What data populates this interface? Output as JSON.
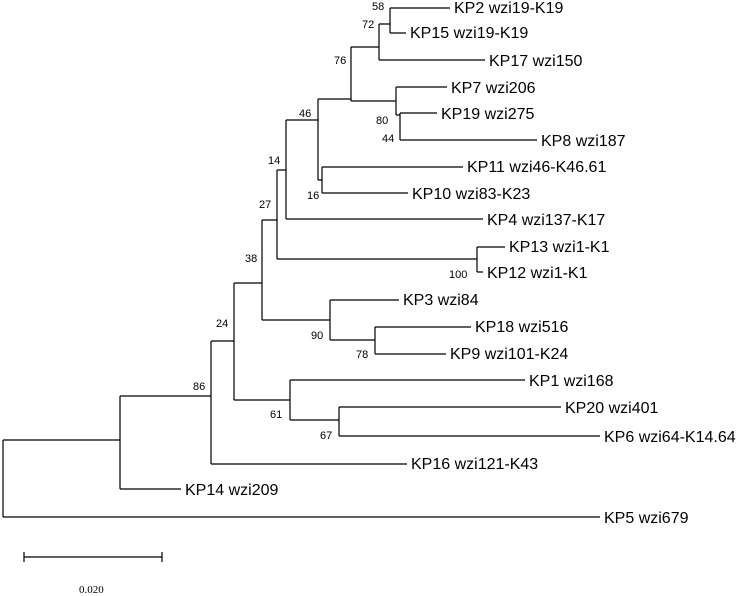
{
  "tree": {
    "leaves": [
      {
        "id": "KP2",
        "label": "KP2 wzi19-K19"
      },
      {
        "id": "KP15",
        "label": "KP15 wzi19-K19"
      },
      {
        "id": "KP17",
        "label": "KP17 wzi150"
      },
      {
        "id": "KP7",
        "label": "KP7 wzi206"
      },
      {
        "id": "KP19",
        "label": "KP19 wzi275"
      },
      {
        "id": "KP8",
        "label": "KP8 wzi187"
      },
      {
        "id": "KP11",
        "label": "KP11 wzi46-K46.61"
      },
      {
        "id": "KP10",
        "label": "KP10 wzi83-K23"
      },
      {
        "id": "KP4",
        "label": "KP4 wzi137-K17"
      },
      {
        "id": "KP13",
        "label": "KP13 wzi1-K1"
      },
      {
        "id": "KP12",
        "label": "KP12 wzi1-K1"
      },
      {
        "id": "KP3",
        "label": "KP3 wzi84"
      },
      {
        "id": "KP18",
        "label": "KP18 wzi516"
      },
      {
        "id": "KP9",
        "label": "KP9 wzi101-K24"
      },
      {
        "id": "KP1",
        "label": "KP1 wzi168"
      },
      {
        "id": "KP20",
        "label": "KP20 wzi401"
      },
      {
        "id": "KP6",
        "label": "KP6 wzi64-K14.64"
      },
      {
        "id": "KP16",
        "label": "KP16 wzi121-K43"
      },
      {
        "id": "KP14",
        "label": "KP14 wzi209"
      },
      {
        "id": "KP5",
        "label": "KP5 wzi679"
      }
    ],
    "bootstrap_values": [
      "58",
      "72",
      "76",
      "80",
      "44",
      "46",
      "14",
      "16",
      "27",
      "100",
      "38",
      "90",
      "78",
      "24",
      "86",
      "61",
      "67"
    ],
    "scale_bar": {
      "label": "0.020"
    }
  }
}
